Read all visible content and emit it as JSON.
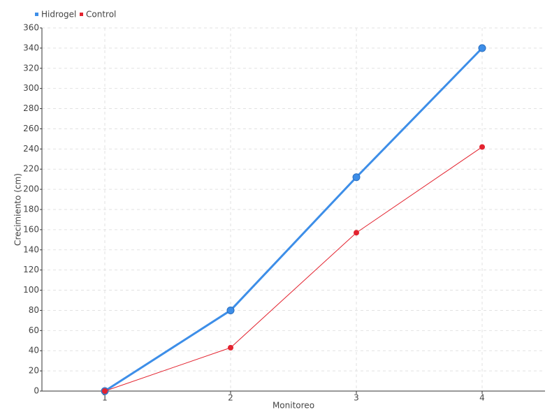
{
  "chart_data": {
    "type": "line",
    "x_label": "Monitoreo",
    "y_label": "Crecimiento (cm)",
    "categories": [
      "1",
      "2",
      "3",
      "4"
    ],
    "series": [
      {
        "name": "Hidrogel",
        "color": "#3d8ee8",
        "values": [
          0,
          80,
          212,
          340
        ]
      },
      {
        "name": "Control",
        "color": "#e3232f",
        "values": [
          0,
          43,
          157,
          242
        ]
      }
    ],
    "ylim": [
      0,
      360
    ],
    "yticks": [
      0,
      20,
      40,
      60,
      80,
      100,
      120,
      140,
      160,
      180,
      200,
      220,
      240,
      260,
      280,
      300,
      320,
      340,
      360
    ],
    "grid": true,
    "legend": "top-left"
  }
}
